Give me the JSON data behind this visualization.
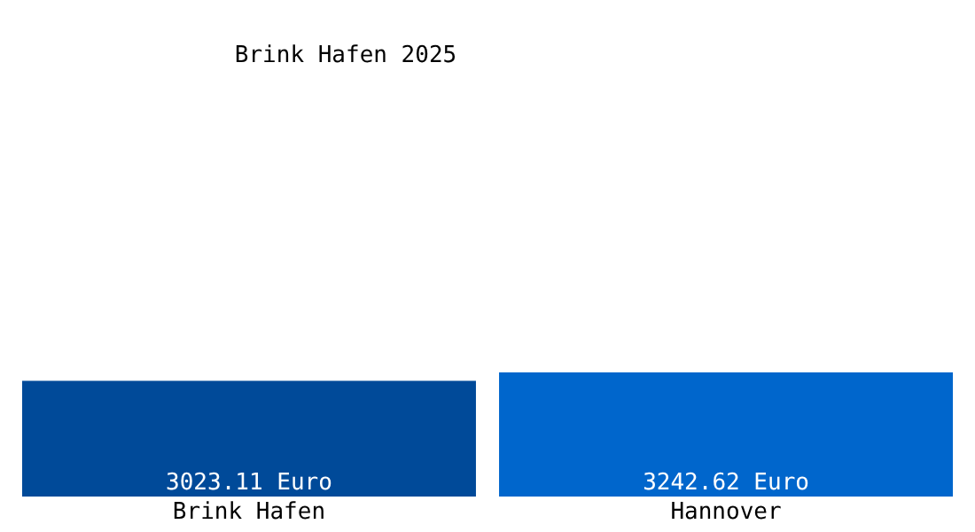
{
  "chart_data": {
    "type": "bar",
    "title": "Brink Hafen 2025",
    "categories": [
      "Brink Hafen",
      "Hannover"
    ],
    "values": [
      3023.11,
      3242.62
    ],
    "colors": [
      "#004a99",
      "#0066cc"
    ],
    "value_labels": [
      "3023.11 Euro",
      "3242.62 Euro"
    ],
    "grid": false
  }
}
